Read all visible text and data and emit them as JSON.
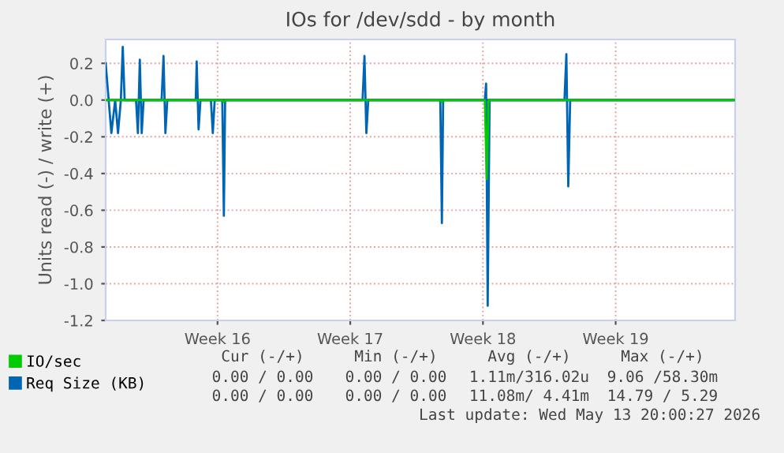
{
  "chart_data": {
    "type": "line",
    "title": "IOs for /dev/sdd - by month",
    "ylabel": "Units read (-) / write (+)",
    "xlim": [
      "2026-04-10T14:24",
      "2026-05-13T19:12"
    ],
    "ylim": [
      -1.2,
      0.33
    ],
    "xticks": [
      {
        "value": "2026-04-16T12:00",
        "label": "Week 16"
      },
      {
        "value": "2026-04-23T12:00",
        "label": "Week 17"
      },
      {
        "value": "2026-04-30T12:00",
        "label": "Week 18"
      },
      {
        "value": "2026-05-07T12:00",
        "label": "Week 19"
      }
    ],
    "yticks": [
      0.2,
      {
        "value": 0,
        "label": "0.0"
      },
      -0.2,
      -0.4,
      -0.6,
      -0.8,
      {
        "value": -1,
        "label": "-1.0"
      },
      -1.2
    ],
    "grid": true,
    "legend": "bottom",
    "line_style": "solid",
    "marker": "none",
    "ref_lines": [
      {
        "axis": "y",
        "value": 0,
        "color": "#000000"
      }
    ],
    "series": [
      {
        "name": "IO/sec",
        "color": "#00cc00",
        "x": [
          "2026-04-10T14:24",
          "2026-04-16T18:00",
          "2026-04-16T20:00",
          "2026-04-16T21:36",
          "2026-04-28T06:00",
          "2026-04-28T08:00",
          "2026-04-28T09:36",
          "2026-04-30T14:24",
          "2026-04-30T16:48",
          "2026-04-30T19:12",
          "2026-05-13T19:12"
        ],
        "values": [
          0,
          0,
          -0.01,
          0,
          0,
          -0.01,
          0,
          0,
          -0.43,
          0,
          0
        ]
      },
      {
        "name": "Req Size (KB)",
        "color": "#0066b3",
        "x": [
          "2026-04-10T14:24",
          "2026-04-10T21:36",
          "2026-04-11T02:24",
          "2026-04-11T06:00",
          "2026-04-11T09:36",
          "2026-04-11T12:00",
          "2026-04-11T14:24",
          "2026-04-12T04:48",
          "2026-04-12T07:12",
          "2026-04-12T09:36",
          "2026-04-12T12:00",
          "2026-04-12T14:24",
          "2026-04-13T13:12",
          "2026-04-13T15:36",
          "2026-04-13T18:00",
          "2026-04-13T20:24",
          "2026-04-15T08:24",
          "2026-04-15T09:36",
          "2026-04-15T12:00",
          "2026-04-15T14:24",
          "2026-04-16T03:36",
          "2026-04-16T06:00",
          "2026-04-16T08:24",
          "2026-04-16T18:00",
          "2026-04-16T20:00",
          "2026-04-16T21:36",
          "2026-04-24T03:36",
          "2026-04-24T06:00",
          "2026-04-24T08:24",
          "2026-04-24T10:48",
          "2026-04-28T06:00",
          "2026-04-28T08:00",
          "2026-04-28T09:36",
          "2026-04-30T14:24",
          "2026-04-30T16:00",
          "2026-04-30T18:00",
          "2026-04-30T20:24",
          "2026-05-04T19:12",
          "2026-05-04T21:36",
          "2026-05-05T00:00",
          "2026-05-05T02:24",
          "2026-05-13T19:12"
        ],
        "values": [
          0.2,
          -0.18,
          0,
          -0.18,
          0,
          0.29,
          0,
          0,
          -0.18,
          0.22,
          -0.18,
          0,
          0,
          0.24,
          -0.18,
          0,
          0,
          0.21,
          -0.16,
          0,
          0,
          -0.18,
          0,
          0,
          -0.63,
          0,
          0,
          0.24,
          -0.18,
          0,
          0,
          -0.67,
          0,
          0,
          0.09,
          -1.12,
          0,
          0,
          0.25,
          -0.47,
          0,
          0
        ]
      }
    ],
    "annotations": [
      "Cur (-/+)",
      "Min (-/+)",
      "Avg (-/+)",
      "Max (-/+)",
      "0.00 / 0.00",
      "0.00 / 0.00",
      "1.11m/316.02u",
      "9.06 /58.30m",
      "0.00 / 0.00",
      "0.00 / 0.00",
      "11.08m/ 4.41m",
      "14.79 / 5.29",
      "Last update: Wed May 13 20:00:27 2026"
    ]
  }
}
